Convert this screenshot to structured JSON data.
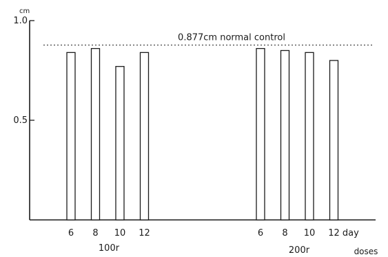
{
  "chart_data": {
    "type": "bar",
    "ylabel": "cm",
    "ylim": [
      0,
      1.0
    ],
    "y_ticks": [
      {
        "value": 1.0,
        "label": "1.0"
      },
      {
        "value": 0.5,
        "label": "0.5"
      }
    ],
    "reference_line": {
      "value": 0.877,
      "label": "0.877cm normal control"
    },
    "groups": [
      {
        "name": "100r",
        "categories": [
          "6",
          "8",
          "10",
          "12"
        ],
        "values": [
          0.84,
          0.86,
          0.77,
          0.84
        ]
      },
      {
        "name": "200r",
        "categories": [
          "6",
          "8",
          "10",
          "12 day"
        ],
        "values": [
          0.86,
          0.85,
          0.84,
          0.8
        ]
      }
    ],
    "x_axis_note": "doses",
    "grid": false
  }
}
